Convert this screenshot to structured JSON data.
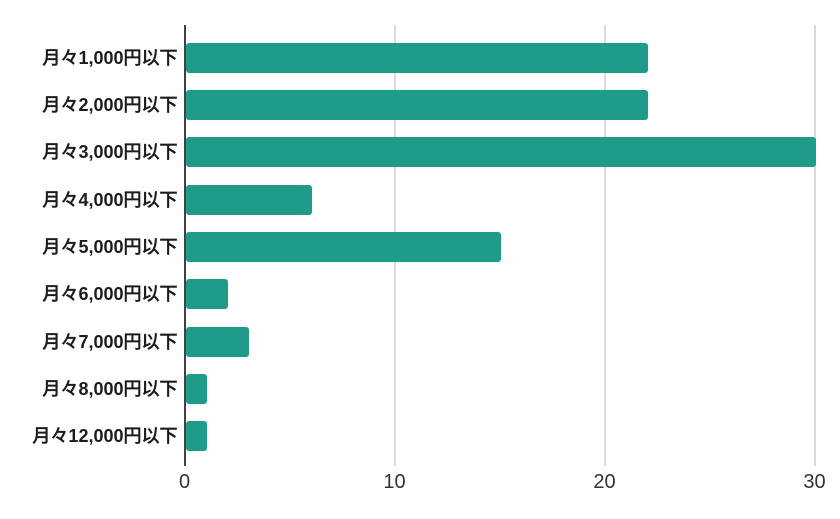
{
  "chart_data": {
    "type": "bar",
    "orientation": "horizontal",
    "title": "",
    "xlabel": "",
    "ylabel": "",
    "categories": [
      "月々1,000円以下",
      "月々2,000円以下",
      "月々3,000円以下",
      "月々4,000円以下",
      "月々5,000円以下",
      "月々6,000円以下",
      "月々7,000円以下",
      "月々8,000円以下",
      "月々12,000円以下"
    ],
    "values": [
      22,
      22,
      30,
      6,
      15,
      2,
      3,
      1,
      1
    ],
    "xlim": [
      0,
      30
    ],
    "xticks": [
      0,
      10,
      20,
      30
    ],
    "grid": true,
    "legend": "none",
    "colors": {
      "bar": "#1f9b8a",
      "axis_line": "#424242",
      "gridline": "#d9d9d9",
      "tick_text": "#333333",
      "category_text": "#1c1c1c",
      "background": "#ffffff"
    }
  }
}
